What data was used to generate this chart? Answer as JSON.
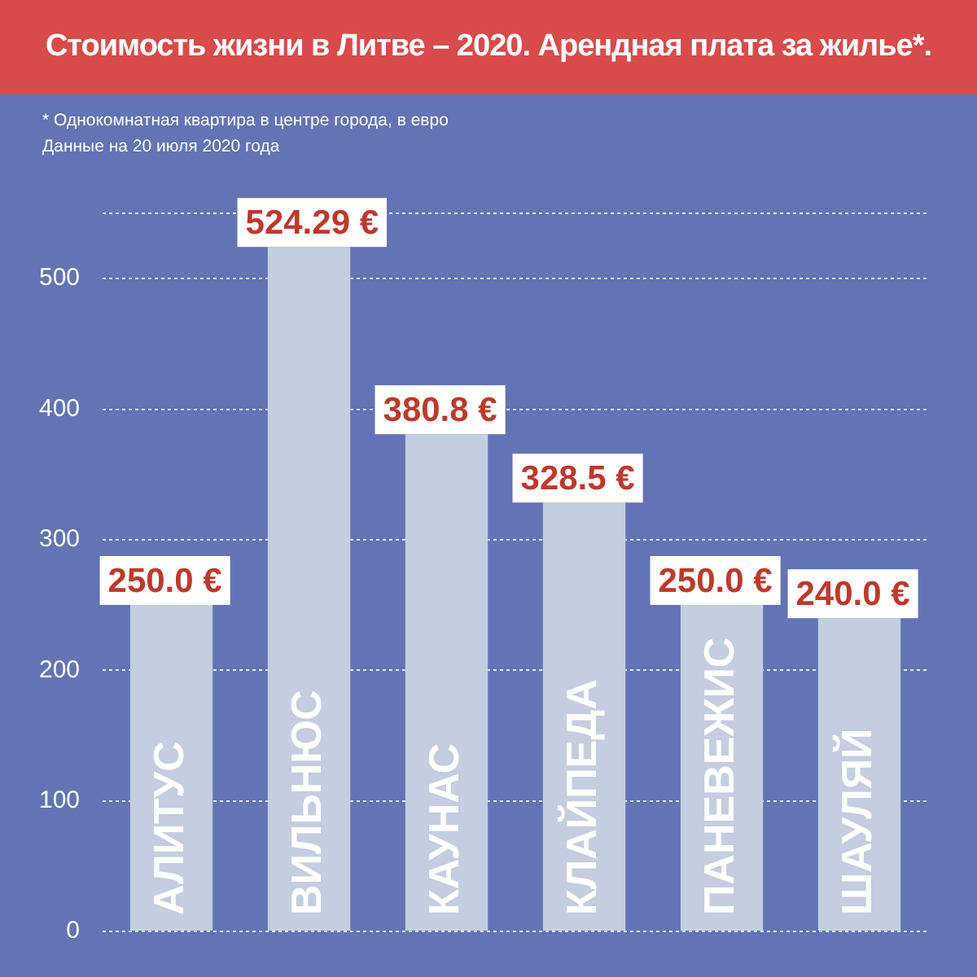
{
  "chart_data": {
    "type": "bar",
    "title": "Стоимость жизни в Литве – 2020. Арендная плата  за жилье*.",
    "annotations": [
      "* Однокомнатная квартира в центре города, в евро",
      "Данные на 20 июля 2020 года"
    ],
    "categories": [
      "АЛИТУС",
      "ВИЛЬНЮС",
      "КАУНАС",
      "КЛАЙПЕДА",
      "ПАНЕВЕЖИС",
      "ШАУЛЯЙ"
    ],
    "values": [
      250.0,
      524.29,
      380.8,
      328.5,
      250.0,
      240.0
    ],
    "value_labels": [
      "250.0 €",
      "524.29 €",
      "380.8 €",
      "328.5 €",
      "250.0 €",
      "240.0 €"
    ],
    "color": "#c3cee0",
    "ylim": [
      0,
      550
    ],
    "yticks": [
      0,
      100,
      200,
      300,
      400,
      500,
      {
        "value": 550,
        "label": null
      }
    ],
    "grid": "y",
    "legend": false
  }
}
